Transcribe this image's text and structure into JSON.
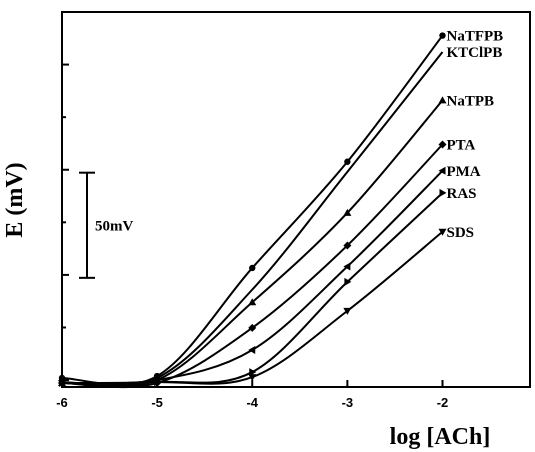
{
  "chart_data": {
    "type": "line",
    "x_label": "log [ACh]",
    "y_label": "E (mV)",
    "x": [
      -6,
      -5,
      -4,
      -3,
      -2
    ],
    "xlim": [
      -6,
      -1.08
    ],
    "xticks": [
      -6,
      -5,
      -4,
      -3,
      -2
    ],
    "ylim": [
      -3.3,
      175
    ],
    "yticks": [
      0,
      25,
      50,
      75,
      100,
      125,
      150
    ],
    "scale_bar": {
      "label": "50mV",
      "from": 48.6,
      "to": 98.6
    },
    "series": [
      {
        "name": "NaTFPB",
        "color": "#000000",
        "marker": "circle",
        "values": [
          1,
          1.9,
          53.3,
          103.8,
          163.8
        ]
      },
      {
        "name": "KTClPB",
        "color": "#000000",
        "marker": "none",
        "values": [
          -1,
          1,
          43,
          99,
          156
        ]
      },
      {
        "name": "NaTPB",
        "color": "#000000",
        "marker": "triangle-up",
        "values": [
          -1.4,
          0,
          37,
          79.5,
          133
        ]
      },
      {
        "name": "PTA",
        "color": "#000000",
        "marker": "diamond",
        "values": [
          -1.4,
          -1.4,
          24.8,
          64,
          112
        ]
      },
      {
        "name": "PMA",
        "color": "#000000",
        "marker": "triangle-left",
        "values": [
          -1.4,
          0,
          14.3,
          54,
          99.5
        ]
      },
      {
        "name": "RAS",
        "color": "#000000",
        "marker": "triangle-right",
        "values": [
          -1.4,
          -1,
          3.8,
          46.7,
          89
        ]
      },
      {
        "name": "SDS",
        "color": "#000000",
        "marker": "triangle-down",
        "values": [
          -1.4,
          -1,
          1.4,
          32.9,
          70.5
        ]
      }
    ]
  }
}
